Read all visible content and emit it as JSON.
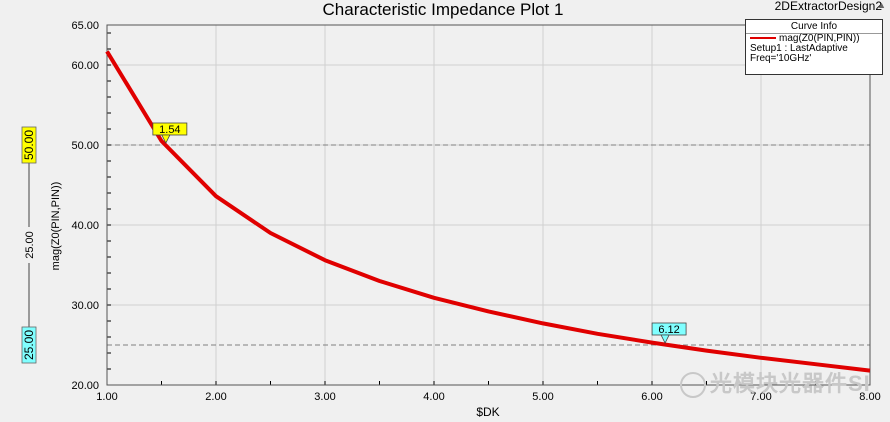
{
  "header": {
    "title": "Characteristic Impedance Plot 1",
    "design_name": "2DExtractorDesign2"
  },
  "legend": {
    "title": "Curve Info",
    "series_name": "mag(Z0(PIN,PIN))",
    "setup": "Setup1 : LastAdaptive",
    "freq": "Freq='10GHz'"
  },
  "side_markers": {
    "upper": "50.00",
    "mid": "25.00",
    "lower": "25.00"
  },
  "watermark": "光模块光器件SI",
  "colors": {
    "series": "#e00000",
    "marker_yellow": "#ffff00",
    "marker_cyan": "#80ffff",
    "background": "#f0f0f0"
  },
  "chart_data": {
    "type": "line",
    "title": "Characteristic Impedance Plot 1",
    "xlabel": "$DK",
    "ylabel": "mag(Z0(PIN,PIN))",
    "xlim": [
      1.0,
      8.0
    ],
    "ylim": [
      20.0,
      65.0
    ],
    "xticks": [
      "1.00",
      "2.00",
      "3.00",
      "4.00",
      "5.00",
      "6.00",
      "7.00",
      "8.00"
    ],
    "yticks": [
      "20.00",
      "30.00",
      "40.00",
      "50.00",
      "60.00",
      "65.00"
    ],
    "grid": true,
    "legend_position": "top-right",
    "reference_lines": [
      50,
      25
    ],
    "series": [
      {
        "name": "mag(Z0(PIN,PIN))",
        "x": [
          1.0,
          1.5,
          2.0,
          2.5,
          3.0,
          3.5,
          4.0,
          4.5,
          5.0,
          5.5,
          6.0,
          6.5,
          7.0,
          7.5,
          8.0
        ],
        "y": [
          61.7,
          50.5,
          43.6,
          39.0,
          35.6,
          33.0,
          30.9,
          29.2,
          27.7,
          26.4,
          25.3,
          24.3,
          23.4,
          22.6,
          21.8
        ]
      }
    ],
    "markers": [
      {
        "label": "1.54",
        "x": 1.54,
        "y": 50.0,
        "color": "yellow"
      },
      {
        "label": "6.12",
        "x": 6.12,
        "y": 25.0,
        "color": "cyan"
      }
    ]
  }
}
